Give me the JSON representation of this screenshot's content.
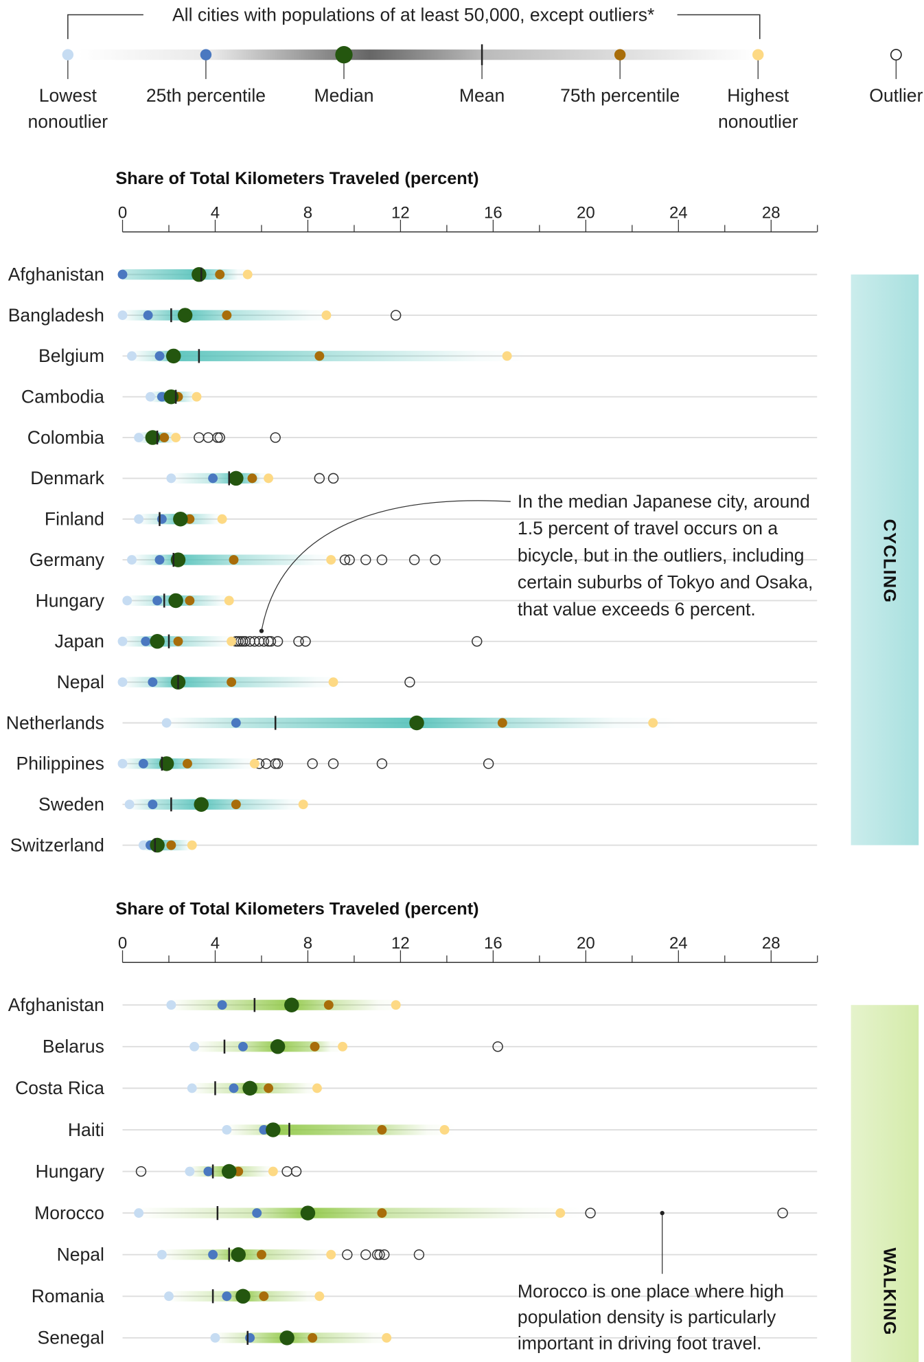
{
  "legend": {
    "caption": "All cities with populations of at least 50,000, except outliers*",
    "items": [
      {
        "key": "low",
        "label": [
          "Lowest",
          "nonoutlier"
        ],
        "color": "#c6dcf2"
      },
      {
        "key": "q1",
        "label": [
          "25th percentile"
        ],
        "color": "#4a78c0"
      },
      {
        "key": "median",
        "label": [
          "Median"
        ],
        "color": "#24560f"
      },
      {
        "key": "mean",
        "label": [
          "Mean"
        ],
        "color": "#222222"
      },
      {
        "key": "q3",
        "label": [
          "75th percentile"
        ],
        "color": "#a86d0a"
      },
      {
        "key": "high",
        "label": [
          "Highest",
          "nonoutlier"
        ],
        "color": "#fdd984"
      },
      {
        "key": "outlier",
        "label": [
          "Outlier"
        ],
        "color": "#333333"
      }
    ]
  },
  "chart_data": [
    {
      "type": "scatter",
      "panel": "CYCLING",
      "title": "Share of Total Kilometers Traveled (percent)",
      "xlim": [
        0,
        30
      ],
      "xticks": [
        0,
        4,
        8,
        12,
        16,
        20,
        24,
        28
      ],
      "band_color": "#4fc0b8",
      "side_color": "#a8e0df",
      "rows": [
        {
          "country": "Afghanistan",
          "low": 0,
          "q1": 0,
          "median": 3.3,
          "mean": 3.4,
          "q3": 4.2,
          "high": 5.4,
          "outliers": []
        },
        {
          "country": "Bangladesh",
          "low": 0,
          "q1": 1.1,
          "median": 2.7,
          "mean": 2.1,
          "q3": 4.5,
          "high": 8.8,
          "outliers": [
            11.8
          ]
        },
        {
          "country": "Belgium",
          "low": 0.4,
          "q1": 1.6,
          "median": 2.2,
          "mean": 3.3,
          "q3": 8.5,
          "high": 16.6,
          "outliers": []
        },
        {
          "country": "Cambodia",
          "low": 1.2,
          "q1": 1.7,
          "median": 2.1,
          "mean": 2.3,
          "q3": 2.4,
          "high": 3.2,
          "outliers": []
        },
        {
          "country": "Colombia",
          "low": 0.7,
          "q1": 1.2,
          "median": 1.3,
          "mean": 1.5,
          "q3": 1.8,
          "high": 2.3,
          "outliers": [
            3.3,
            3.7,
            4.1,
            4.2,
            6.6
          ]
        },
        {
          "country": "Denmark",
          "low": 2.1,
          "q1": 3.9,
          "median": 4.9,
          "mean": 4.6,
          "q3": 5.6,
          "high": 6.3,
          "outliers": [
            8.5,
            9.1
          ]
        },
        {
          "country": "Finland",
          "low": 0.7,
          "q1": 1.7,
          "median": 2.5,
          "mean": 1.6,
          "q3": 2.9,
          "high": 4.3,
          "outliers": []
        },
        {
          "country": "Germany",
          "low": 0.4,
          "q1": 1.6,
          "median": 2.4,
          "mean": 2.2,
          "q3": 4.8,
          "high": 9.0,
          "outliers": [
            9.6,
            9.8,
            10.5,
            11.2,
            12.6,
            13.5
          ]
        },
        {
          "country": "Hungary",
          "low": 0.2,
          "q1": 1.5,
          "median": 2.3,
          "mean": 1.8,
          "q3": 2.9,
          "high": 4.6,
          "outliers": []
        },
        {
          "country": "Japan",
          "low": 0,
          "q1": 1.0,
          "median": 1.5,
          "mean": 2.0,
          "q3": 2.4,
          "high": 4.7,
          "outliers": [
            4.9,
            5.0,
            5.1,
            5.2,
            5.3,
            5.5,
            5.7,
            5.9,
            6.1,
            6.3,
            6.4,
            6.7,
            7.6,
            7.9,
            15.3
          ]
        },
        {
          "country": "Nepal",
          "low": 0,
          "q1": 1.3,
          "median": 2.4,
          "mean": 2.4,
          "q3": 4.7,
          "high": 9.1,
          "outliers": [
            12.4
          ]
        },
        {
          "country": "Netherlands",
          "low": 1.9,
          "q1": 4.9,
          "median": 12.7,
          "mean": 6.6,
          "q3": 16.4,
          "high": 22.9,
          "outliers": []
        },
        {
          "country": "Philippines",
          "low": 0,
          "q1": 0.9,
          "median": 1.9,
          "mean": 1.7,
          "q3": 2.8,
          "high": 5.7,
          "outliers": [
            5.9,
            6.2,
            6.6,
            6.7,
            8.2,
            9.1,
            11.2,
            15.8
          ]
        },
        {
          "country": "Sweden",
          "low": 0.3,
          "q1": 1.3,
          "median": 3.4,
          "mean": 2.1,
          "q3": 4.9,
          "high": 7.8,
          "outliers": []
        },
        {
          "country": "Switzerland",
          "low": 0.9,
          "q1": 1.2,
          "median": 1.5,
          "mean": 1.4,
          "q3": 2.1,
          "high": 3.0,
          "outliers": []
        }
      ],
      "annotation": {
        "lines": [
          "In the median Japanese city, around",
          "1.5 percent of travel occurs on a",
          "bicycle, but in the outliers, including",
          "certain suburbs of Tokyo and Osaka,",
          "that value exceeds 6 percent."
        ],
        "target_country": "Japan",
        "target_value": 6.0
      }
    },
    {
      "type": "scatter",
      "panel": "WALKING",
      "title": "Share of Total Kilometers Traveled (percent)",
      "xlim": [
        0,
        30
      ],
      "xticks": [
        0,
        4,
        8,
        12,
        16,
        20,
        24,
        28
      ],
      "band_color": "#8cc63f",
      "side_color": "#d4ebaa",
      "rows": [
        {
          "country": "Afghanistan",
          "low": 2.1,
          "q1": 4.3,
          "median": 7.3,
          "mean": 5.7,
          "q3": 8.9,
          "high": 11.8,
          "outliers": []
        },
        {
          "country": "Belarus",
          "low": 3.1,
          "q1": 5.2,
          "median": 6.7,
          "mean": 4.4,
          "q3": 8.3,
          "high": 9.5,
          "outliers": [
            16.2
          ]
        },
        {
          "country": "Costa Rica",
          "low": 3.0,
          "q1": 4.8,
          "median": 5.5,
          "mean": 4.0,
          "q3": 6.3,
          "high": 8.4,
          "outliers": []
        },
        {
          "country": "Haiti",
          "low": 4.5,
          "q1": 6.1,
          "median": 6.5,
          "mean": 7.2,
          "q3": 11.2,
          "high": 13.9,
          "outliers": []
        },
        {
          "country": "Hungary",
          "low": 2.9,
          "q1": 3.7,
          "median": 4.6,
          "mean": 3.9,
          "q3": 5.0,
          "high": 6.5,
          "outliers": [
            0.8,
            7.1,
            7.5
          ]
        },
        {
          "country": "Morocco",
          "low": 0.7,
          "q1": 5.8,
          "median": 8.0,
          "mean": 4.1,
          "q3": 11.2,
          "high": 18.9,
          "outliers": [
            20.2,
            28.5
          ]
        },
        {
          "country": "Nepal",
          "low": 1.7,
          "q1": 3.9,
          "median": 5.0,
          "mean": 4.6,
          "q3": 6.0,
          "high": 9.0,
          "outliers": [
            9.7,
            10.5,
            11.0,
            11.1,
            11.3,
            12.8
          ]
        },
        {
          "country": "Romania",
          "low": 2.0,
          "q1": 4.5,
          "median": 5.2,
          "mean": 3.9,
          "q3": 6.1,
          "high": 8.5,
          "outliers": []
        },
        {
          "country": "Senegal",
          "low": 4.0,
          "q1": 5.5,
          "median": 7.1,
          "mean": 5.4,
          "q3": 8.2,
          "high": 11.4,
          "outliers": []
        }
      ],
      "annotation": {
        "lines": [
          "Morocco is one place where high",
          "population density is particularly",
          "important in driving foot travel."
        ],
        "target_country": "Morocco",
        "target_value": 23.3
      }
    }
  ]
}
